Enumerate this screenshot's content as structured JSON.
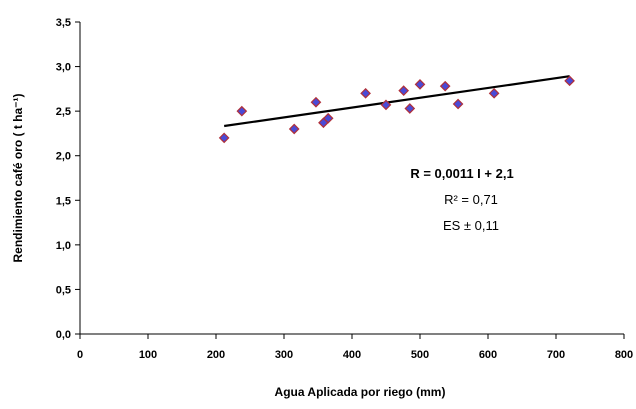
{
  "chart_data": {
    "type": "scatter",
    "xlabel": "Agua Aplicada por riego (mm)",
    "ylabel": "Rendimiento café oro ( t ha⁻¹)",
    "xlim": [
      0,
      800
    ],
    "ylim": [
      0,
      3.5
    ],
    "x_ticks": [
      "0",
      "100",
      "200",
      "300",
      "400",
      "500",
      "600",
      "700",
      "800"
    ],
    "y_ticks": [
      "0,0",
      "0,5",
      "1,0",
      "1,5",
      "2,0",
      "2,5",
      "3,0",
      "3,5"
    ],
    "grid": false,
    "legend": "none",
    "points": [
      {
        "x": 212,
        "y": 2.2
      },
      {
        "x": 238,
        "y": 2.5
      },
      {
        "x": 315,
        "y": 2.3
      },
      {
        "x": 347,
        "y": 2.6
      },
      {
        "x": 358,
        "y": 2.37
      },
      {
        "x": 365,
        "y": 2.42
      },
      {
        "x": 420,
        "y": 2.7
      },
      {
        "x": 450,
        "y": 2.57
      },
      {
        "x": 476,
        "y": 2.73
      },
      {
        "x": 485,
        "y": 2.53
      },
      {
        "x": 500,
        "y": 2.8
      },
      {
        "x": 537,
        "y": 2.78
      },
      {
        "x": 556,
        "y": 2.58
      },
      {
        "x": 609,
        "y": 2.7
      },
      {
        "x": 720,
        "y": 2.84
      }
    ],
    "trendline": {
      "slope": 0.0011,
      "intercept": 2.1,
      "x_range": [
        212,
        720
      ]
    },
    "annotations": [
      "R = 0,0011 I + 2,1",
      "R² = 0,71",
      "ES ± 0,11"
    ]
  },
  "colors": {
    "marker_fill": "#4a4ad6",
    "marker_stroke": "#b0303a",
    "trendline": "#000000",
    "axis": "#000000"
  }
}
